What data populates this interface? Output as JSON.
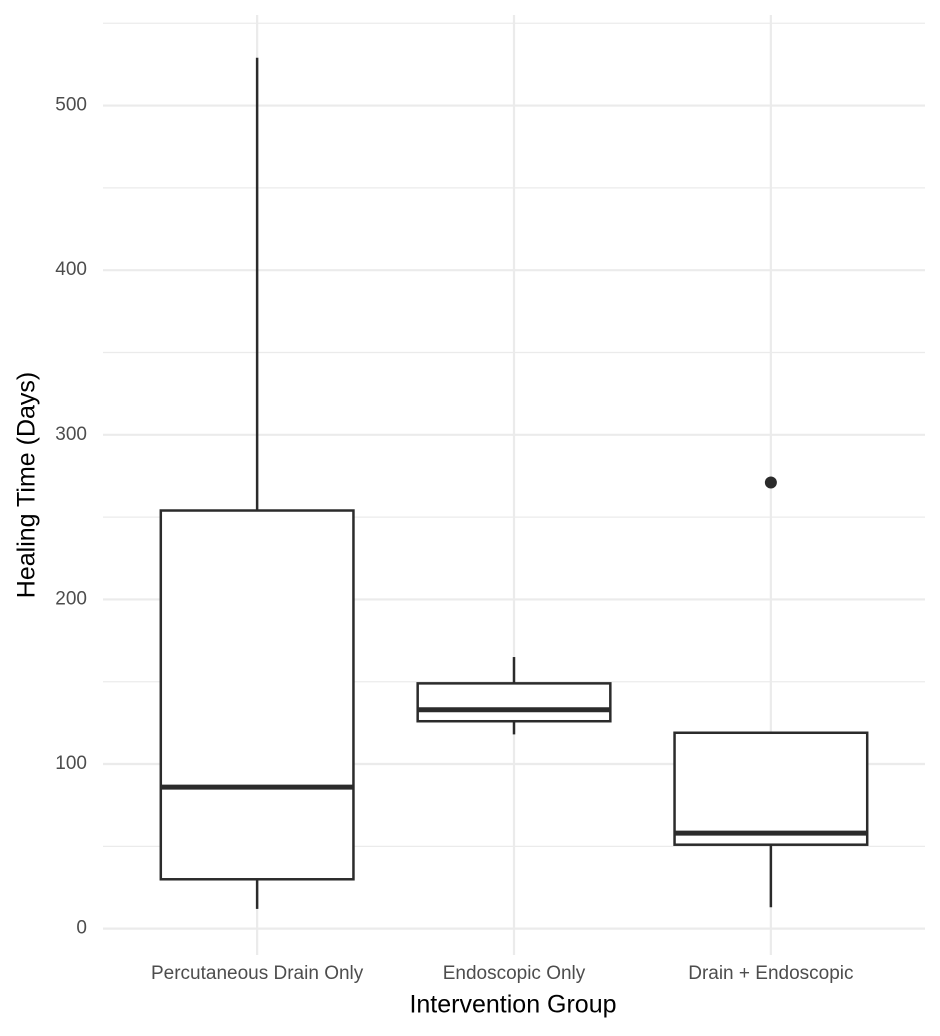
{
  "chart_data": {
    "type": "box",
    "x_label": "Intervention Group",
    "y_label": "Healing Time (Days)",
    "categories": [
      "Percutaneous Drain Only",
      "Endoscopic Only",
      "Drain + Endoscopic"
    ],
    "boxes": [
      {
        "min": 12,
        "q1": 30,
        "median": 86,
        "q3": 254,
        "max": 529,
        "outliers": []
      },
      {
        "min": 118,
        "q1": 126,
        "median": 133,
        "q3": 149,
        "max": 165,
        "outliers": []
      },
      {
        "min": 13,
        "q1": 51,
        "median": 58,
        "q3": 119,
        "max": 119,
        "outliers": [
          271
        ]
      }
    ],
    "color": "#2b2b2b",
    "ylim": [
      -16,
      555
    ],
    "yticks": [
      0,
      100,
      200,
      300,
      400,
      500
    ],
    "minor_yticks": [
      50,
      150,
      250,
      350,
      450,
      550
    ],
    "grid": true
  }
}
